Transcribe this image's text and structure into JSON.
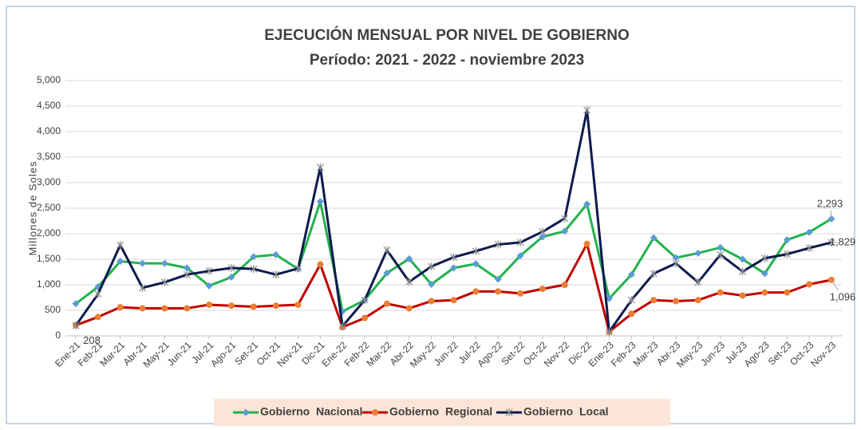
{
  "chart_data": {
    "type": "line",
    "title": "EJECUCIÓN MENSUAL POR NIVEL DE GOBIERNO",
    "subtitle": "Período: 2021 - 2022 - noviembre 2023",
    "y_label": "Millones de Soles",
    "categories": [
      "Ene-21",
      "Feb-21",
      "Mar-21",
      "Abr-21",
      "May-21",
      "Jun-21",
      "Jul-21",
      "Ago-21",
      "Set-21",
      "Oct-21",
      "Nov-21",
      "Dic-21",
      "Ene-22",
      "Feb-22",
      "Mar-22",
      "Abr-22",
      "May-22",
      "Jun-22",
      "Jul-22",
      "Ago-22",
      "Set-22",
      "Oct-22",
      "Nov-22",
      "Dic-22",
      "Ene-23",
      "Feb-23",
      "Mar-23",
      "Abr-23",
      "May-23",
      "Jun-23",
      "Jul-23",
      "Ago-23",
      "Set-23",
      "Oct-23",
      "Nov-23"
    ],
    "ylim": [
      0,
      5000
    ],
    "yticks": [
      0,
      500,
      {
        "value": 1000,
        "label": "1,000"
      },
      {
        "value": 1500,
        "label": "1,500"
      },
      {
        "value": 2000,
        "label": "2,000"
      },
      {
        "value": 2500,
        "label": "2,500"
      },
      {
        "value": 3000,
        "label": "3,000"
      },
      {
        "value": 3500,
        "label": "3,500"
      },
      {
        "value": 4000,
        "label": "4,000"
      },
      {
        "value": 4500,
        "label": "4,500"
      },
      {
        "value": 5000,
        "label": "5,000"
      }
    ],
    "grid": true,
    "legend": "bottom",
    "series": [
      {
        "name": "Gobierno  Nacional",
        "color": "#22b24c",
        "marker": "diamond",
        "marker_color": "#5b9bd5",
        "values": [
          630,
          960,
          1460,
          1420,
          1420,
          1330,
          980,
          1150,
          1550,
          1590,
          1310,
          2630,
          480,
          700,
          1230,
          1510,
          1010,
          1330,
          1410,
          1110,
          1570,
          1940,
          2050,
          2580,
          730,
          1200,
          1920,
          1530,
          1620,
          1730,
          1500,
          1220,
          1880,
          2030,
          2293
        ],
        "value_labels": [
          null,
          null,
          null,
          null,
          null,
          null,
          null,
          null,
          null,
          null,
          null,
          null,
          null,
          null,
          null,
          null,
          null,
          null,
          null,
          null,
          null,
          null,
          null,
          null,
          null,
          null,
          null,
          null,
          null,
          null,
          null,
          null,
          null,
          null,
          "2,293"
        ]
      },
      {
        "name": "Gobierno  Regional",
        "color": "#c00000",
        "marker": "circle",
        "marker_color": "#ed7d31",
        "values": [
          208,
          370,
          560,
          540,
          540,
          540,
          610,
          590,
          570,
          590,
          610,
          1400,
          170,
          350,
          630,
          540,
          680,
          700,
          870,
          870,
          830,
          920,
          1000,
          1800,
          80,
          430,
          700,
          680,
          700,
          850,
          790,
          850,
          850,
          1010,
          1096
        ],
        "value_labels": [
          "208",
          null,
          null,
          null,
          null,
          null,
          null,
          null,
          null,
          null,
          null,
          null,
          null,
          null,
          null,
          null,
          null,
          null,
          null,
          null,
          null,
          null,
          null,
          null,
          null,
          null,
          null,
          null,
          null,
          null,
          null,
          null,
          null,
          null,
          "1,096"
        ]
      },
      {
        "name": "Gobierno  Local",
        "color": "#0b1a4e",
        "marker": "x",
        "marker_color": "#8c8c8c",
        "values": [
          200,
          820,
          1780,
          940,
          1050,
          1200,
          1270,
          1330,
          1310,
          1200,
          1320,
          3300,
          190,
          700,
          1680,
          1060,
          1360,
          1540,
          1660,
          1790,
          1830,
          2040,
          2300,
          4420,
          80,
          700,
          1220,
          1420,
          1050,
          1590,
          1260,
          1520,
          1600,
          1720,
          1829
        ],
        "value_labels": [
          null,
          null,
          null,
          null,
          null,
          null,
          null,
          null,
          null,
          null,
          null,
          null,
          null,
          null,
          null,
          null,
          null,
          null,
          null,
          null,
          null,
          null,
          null,
          null,
          null,
          null,
          null,
          null,
          null,
          null,
          null,
          null,
          null,
          null,
          "1,829"
        ]
      }
    ]
  }
}
